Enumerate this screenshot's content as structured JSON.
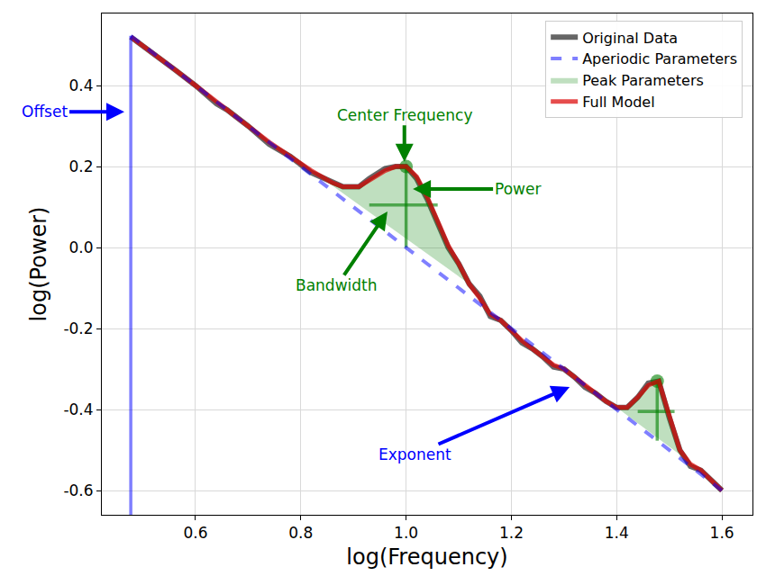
{
  "chart_data": {
    "type": "line",
    "x_label": "log(Frequency)",
    "y_label": "log(Power)",
    "xlim": [
      0.422,
      1.658
    ],
    "ylim": [
      -0.66,
      0.578
    ],
    "xticks": [
      0.6,
      0.8,
      {
        "value": 1,
        "label": "1.0"
      },
      1.2,
      1.4,
      1.6
    ],
    "yticks": [
      -0.6,
      -0.4,
      -0.2,
      {
        "value": 0,
        "label": "0.0"
      },
      0.2,
      0.4
    ],
    "grid": true,
    "legend": "upper right",
    "x": [
      0.477,
      0.52,
      0.56,
      0.6,
      0.64,
      0.66,
      0.7,
      0.74,
      0.78,
      0.82,
      0.86,
      0.88,
      0.91,
      0.93,
      0.96,
      0.98,
      1.0,
      1.02,
      1.04,
      1.06,
      1.08,
      1.1,
      1.12,
      1.14,
      1.16,
      1.18,
      1.2,
      1.22,
      1.24,
      1.26,
      1.28,
      1.3,
      1.32,
      1.34,
      1.36,
      1.38,
      1.4,
      1.42,
      1.44,
      1.46,
      1.48,
      1.5,
      1.52,
      1.54,
      1.56,
      1.58,
      1.6
    ],
    "series": [
      {
        "name": "Original Data",
        "color": "black",
        "line_style": "solid",
        "values": [
          0.52,
          0.48,
          0.44,
          0.4,
          0.355,
          0.34,
          0.3,
          0.255,
          0.225,
          0.185,
          0.16,
          0.15,
          0.15,
          0.17,
          0.195,
          0.2,
          0.2,
          0.17,
          0.12,
          0.06,
          0.0,
          -0.04,
          -0.09,
          -0.12,
          -0.17,
          -0.18,
          -0.205,
          -0.235,
          -0.25,
          -0.27,
          -0.295,
          -0.3,
          -0.32,
          -0.345,
          -0.36,
          -0.38,
          -0.395,
          -0.395,
          -0.37,
          -0.335,
          -0.33,
          -0.42,
          -0.5,
          -0.54,
          -0.55,
          -0.575,
          -0.6
        ]
      },
      {
        "name": "Aperiodic Parameters",
        "color": "blue",
        "line_style": "dashed",
        "x": [
          0.477,
          1.6
        ],
        "values": [
          0.523,
          -0.6
        ]
      },
      {
        "name": "Peak Parameters",
        "color": "green",
        "marker": "circle",
        "peaks": [
          {
            "center": 1.0,
            "top": 0.2,
            "base": 0.0,
            "bandwidth": [
              0.93,
              1.06
            ],
            "bandwidth_at": 0.105,
            "span": [
              0.82,
              1.12
            ]
          },
          {
            "center": 1.477,
            "top": -0.33,
            "base": -0.477,
            "bandwidth": [
              1.44,
              1.51
            ],
            "bandwidth_at": -0.405,
            "span": [
              1.4,
              1.56
            ]
          }
        ]
      },
      {
        "name": "Full Model",
        "color": "red",
        "line_style": "solid",
        "values": [
          0.52,
          0.48,
          0.44,
          0.4,
          0.36,
          0.34,
          0.3,
          0.26,
          0.225,
          0.19,
          0.16,
          0.15,
          0.15,
          0.165,
          0.19,
          0.2,
          0.2,
          0.175,
          0.125,
          0.065,
          0.005,
          -0.04,
          -0.09,
          -0.125,
          -0.165,
          -0.18,
          -0.205,
          -0.23,
          -0.25,
          -0.27,
          -0.29,
          -0.3,
          -0.32,
          -0.34,
          -0.36,
          -0.38,
          -0.395,
          -0.395,
          -0.37,
          -0.34,
          -0.33,
          -0.42,
          -0.5,
          -0.535,
          -0.55,
          -0.575,
          -0.6
        ]
      }
    ],
    "annotations": [
      {
        "text": "Offset",
        "color": "blue"
      },
      {
        "text": "Center Frequency",
        "color": "green"
      },
      {
        "text": "Power",
        "color": "green"
      },
      {
        "text": "Bandwidth",
        "color": "green"
      },
      {
        "text": "Exponent",
        "color": "blue"
      }
    ]
  }
}
